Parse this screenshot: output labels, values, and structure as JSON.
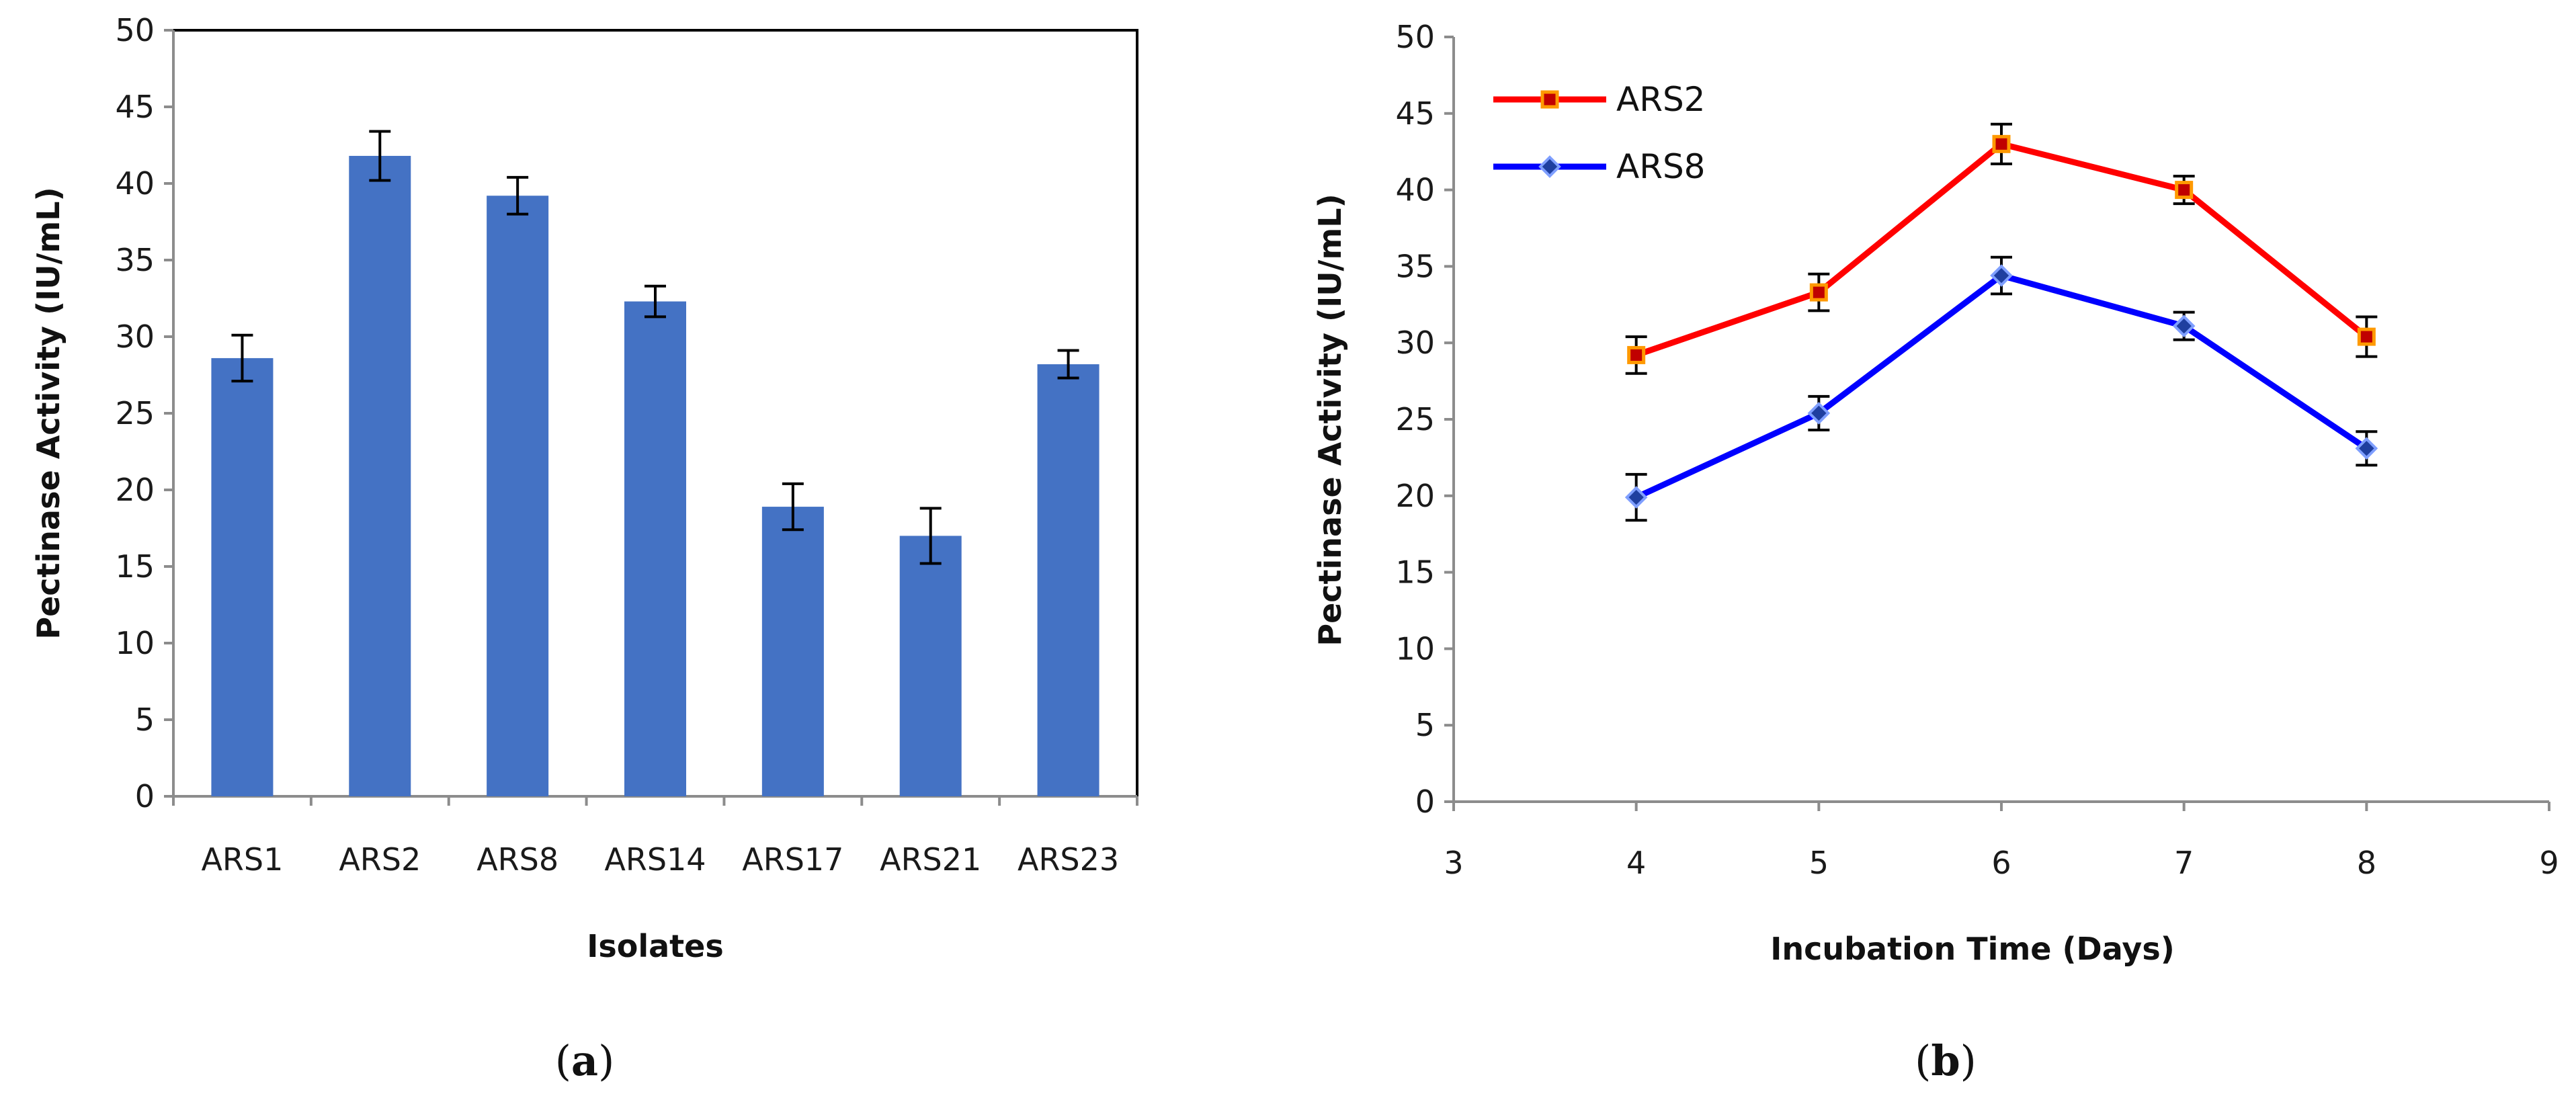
{
  "chart_data": [
    {
      "id": "a",
      "type": "bar",
      "panel_label": "a",
      "categories": [
        "ARS1",
        "ARS2",
        "ARS8",
        "ARS14",
        "ARS17",
        "ARS21",
        "ARS23"
      ],
      "values": [
        28.6,
        41.8,
        39.2,
        32.3,
        18.9,
        17.0,
        28.2
      ],
      "errors": [
        1.5,
        1.6,
        1.2,
        1.0,
        1.5,
        1.8,
        0.9
      ],
      "xlabel": "Isolates",
      "ylabel": "Pectinase Activity (IU/mL)",
      "ylim": [
        0,
        50
      ],
      "yticks": [
        "0",
        "5",
        "10",
        "15",
        "20",
        "25",
        "30",
        "35",
        "40",
        "45",
        "50"
      ],
      "color": "#4472c4",
      "grid": false
    },
    {
      "id": "b",
      "type": "line",
      "panel_label": "b",
      "x": [
        4,
        5,
        6,
        7,
        8
      ],
      "series": [
        {
          "name": "ARS2",
          "values": [
            29.2,
            33.3,
            43.0,
            40.0,
            30.4
          ],
          "errors": [
            1.2,
            1.2,
            1.3,
            0.9,
            1.3
          ],
          "color": "#ff0000",
          "marker": "square",
          "marker_fill": "#c00000",
          "marker_edge": "#ff9900"
        },
        {
          "name": "ARS8",
          "values": [
            19.9,
            25.4,
            34.4,
            31.1,
            23.1
          ],
          "errors": [
            1.5,
            1.1,
            1.2,
            0.9,
            1.1
          ],
          "color": "#0000ff",
          "marker": "diamond",
          "marker_fill": "#1f3f9f",
          "marker_edge": "#7f9fff"
        }
      ],
      "xlabel": "Incubation Time (Days)",
      "ylabel": "Pectinase Activity (IU/mL)",
      "xlim": [
        3,
        9
      ],
      "ylim": [
        0,
        50
      ],
      "xticks": [
        "3",
        "4",
        "5",
        "6",
        "7",
        "8",
        "9"
      ],
      "yticks": [
        "0",
        "5",
        "10",
        "15",
        "20",
        "25",
        "30",
        "35",
        "40",
        "45",
        "50"
      ],
      "legend": "top-left",
      "grid": false
    }
  ]
}
